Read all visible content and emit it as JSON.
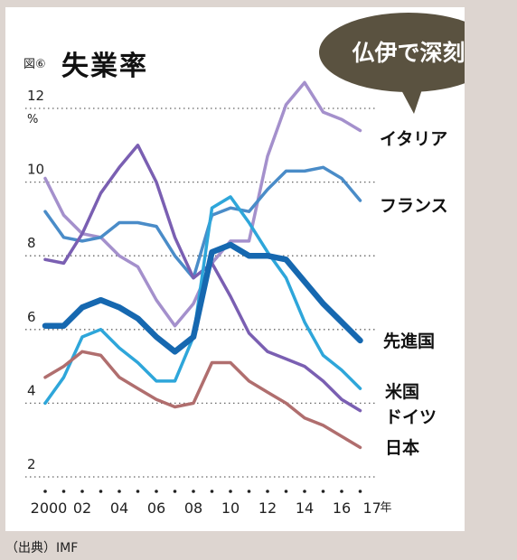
{
  "figure_label": "図⑥",
  "title": "失業率",
  "callout": "仏伊で深刻",
  "source": "（出典）IMF",
  "colors": {
    "background": "#ddd5d0",
    "panel": "#ffffff",
    "callout_fill": "#5a5240"
  },
  "chart_data": {
    "type": "line",
    "title": "失業率",
    "y_unit": "%",
    "x_unit": "年",
    "ylim": [
      2,
      12.5
    ],
    "y_ticks": [
      2,
      4,
      6,
      8,
      10,
      12
    ],
    "x_ticks": [
      {
        "x": 2000,
        "label": "2000"
      },
      {
        "x": 2002,
        "label": "02"
      },
      {
        "x": 2004,
        "label": "04"
      },
      {
        "x": 2006,
        "label": "06"
      },
      {
        "x": 2008,
        "label": "08"
      },
      {
        "x": 2010,
        "label": "10"
      },
      {
        "x": 2012,
        "label": "12"
      },
      {
        "x": 2014,
        "label": "14"
      },
      {
        "x": 2016,
        "label": "16"
      },
      {
        "x": 2017,
        "label": "17"
      }
    ],
    "x": [
      2000,
      2001,
      2002,
      2003,
      2004,
      2005,
      2006,
      2007,
      2008,
      2009,
      2010,
      2011,
      2012,
      2013,
      2014,
      2015,
      2016,
      2017
    ],
    "grid": "dotted horizontal",
    "series": [
      {
        "name": "イタリア",
        "color": "#a490cc",
        "width": 3.5,
        "values": [
          10.1,
          9.1,
          8.6,
          8.5,
          8.0,
          7.7,
          6.8,
          6.1,
          6.7,
          7.8,
          8.4,
          8.4,
          10.7,
          12.1,
          12.7,
          11.9,
          11.7,
          11.4
        ]
      },
      {
        "name": "フランス",
        "color": "#4a8cc8",
        "width": 3.5,
        "values": [
          9.2,
          8.5,
          8.4,
          8.5,
          8.9,
          8.9,
          8.8,
          8.0,
          7.4,
          9.1,
          9.3,
          9.2,
          9.8,
          10.3,
          10.3,
          10.4,
          10.1,
          9.5
        ]
      },
      {
        "name": "ドイツ",
        "color": "#7a5fb2",
        "width": 3.5,
        "values": [
          7.9,
          7.8,
          8.6,
          9.7,
          10.4,
          11.0,
          10.0,
          8.5,
          7.4,
          7.8,
          6.9,
          5.9,
          5.4,
          5.2,
          5.0,
          4.6,
          4.1,
          3.8
        ]
      },
      {
        "name": "米国",
        "color": "#2ea6da",
        "width": 3.5,
        "values": [
          4.0,
          4.7,
          5.8,
          6.0,
          5.5,
          5.1,
          4.6,
          4.6,
          5.8,
          9.3,
          9.6,
          8.9,
          8.1,
          7.4,
          6.2,
          5.3,
          4.9,
          4.4
        ]
      },
      {
        "name": "先進国",
        "color": "#1668b0",
        "width": 6.5,
        "values": [
          6.1,
          6.1,
          6.6,
          6.8,
          6.6,
          6.3,
          5.8,
          5.4,
          5.8,
          8.1,
          8.3,
          8.0,
          8.0,
          7.9,
          7.3,
          6.7,
          6.2,
          5.7
        ]
      },
      {
        "name": "日本",
        "color": "#b06e6e",
        "width": 3.5,
        "values": [
          4.7,
          5.0,
          5.4,
          5.3,
          4.7,
          4.4,
          4.1,
          3.9,
          4.0,
          5.1,
          5.1,
          4.6,
          4.3,
          4.0,
          3.6,
          3.4,
          3.1,
          2.8
        ]
      }
    ]
  }
}
